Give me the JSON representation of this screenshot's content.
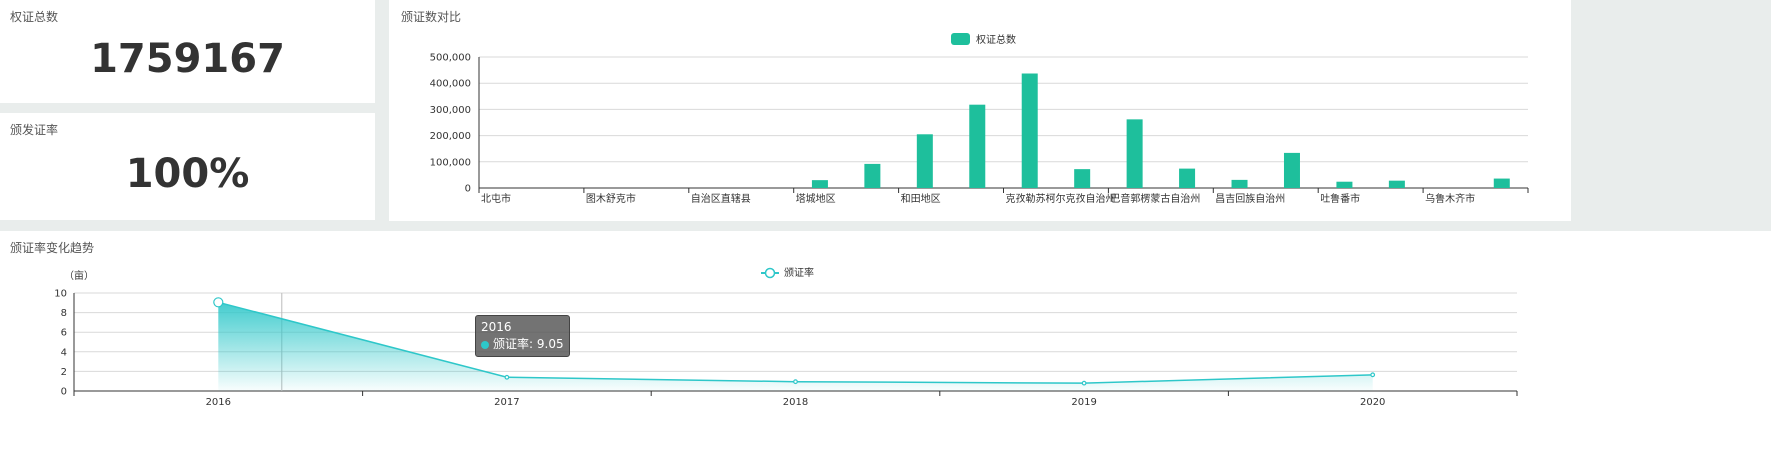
{
  "cards": {
    "total": {
      "title": "权证总数",
      "value": "1759167"
    },
    "rate": {
      "title": "颁发证率",
      "value": "100%"
    }
  },
  "bar_panel": {
    "title": "颁证数对比"
  },
  "line_panel": {
    "title": "颁证率变化趋势"
  },
  "tooltip": {
    "title": "2016",
    "series": "颁证率",
    "value": "9.05"
  },
  "colors": {
    "bar": "#1ebf9c",
    "line": "#2ec7c9"
  },
  "chart_data": [
    {
      "type": "bar",
      "title": "颁证数对比",
      "legend": [
        "权证总数"
      ],
      "legend_position": "top-center",
      "tick_labels": [
        "北屯市",
        "图木舒克市",
        "自治区直辖县",
        "塔城地区",
        "和田地区",
        "克孜勒苏柯尔克孜自治州",
        "巴音郭楞蒙古自治州",
        "昌吉回族自治州",
        "吐鲁番市",
        "乌鲁木齐市"
      ],
      "values": [
        0,
        0,
        0,
        0,
        0,
        0,
        30000,
        92000,
        205000,
        318000,
        437000,
        72000,
        262000,
        74000,
        31000,
        134000,
        24000,
        28000,
        0,
        36000
      ],
      "y_ticks": [
        "0",
        "100,000",
        "200,000",
        "300,000",
        "400,000",
        "500,000"
      ],
      "ylim": [
        0,
        500000
      ],
      "grid": true
    },
    {
      "type": "area",
      "title": "颁证率变化趋势",
      "legend": [
        "颁证率"
      ],
      "legend_position": "top-center",
      "ylabel": "（亩）",
      "x": [
        "2016",
        "2017",
        "2018",
        "2019",
        "2020"
      ],
      "series": [
        {
          "name": "颁证率",
          "values": [
            9.05,
            1.4,
            0.95,
            0.8,
            1.65
          ]
        }
      ],
      "y_ticks": [
        "0",
        "2",
        "4",
        "6",
        "8",
        "10"
      ],
      "ylim": [
        0,
        10
      ],
      "grid": true
    }
  ]
}
